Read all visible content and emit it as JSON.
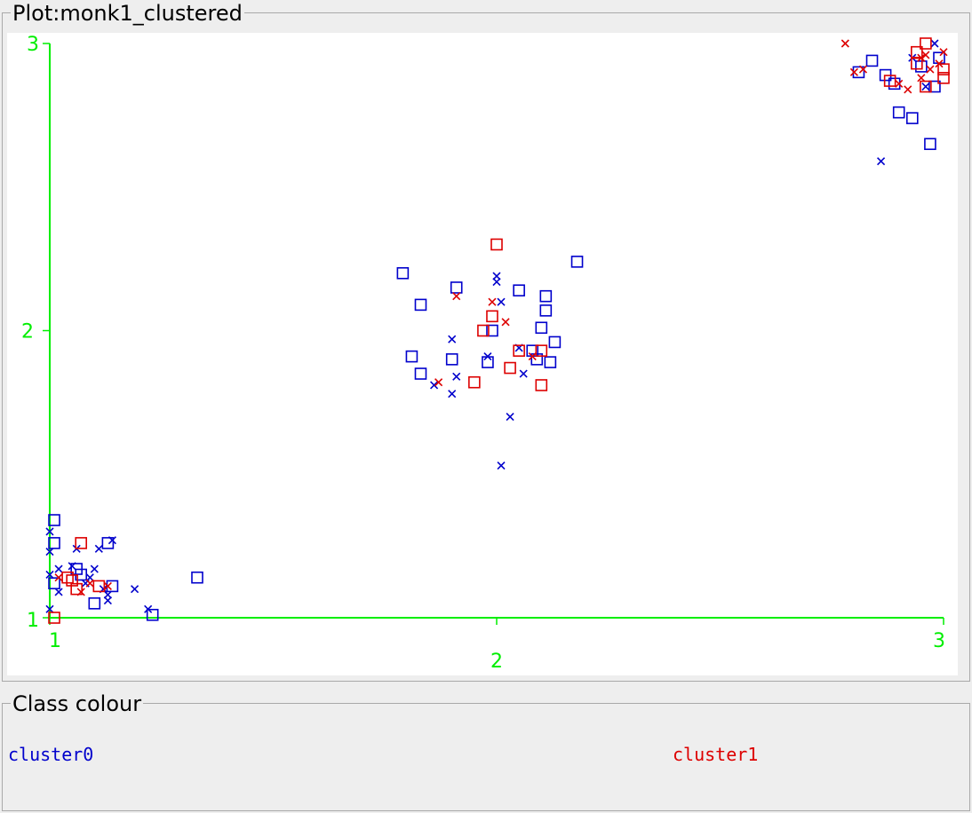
{
  "plot_title": "Plot:monk1_clustered",
  "legend_title": "Class colour",
  "colors": {
    "axis": "#00ee00",
    "cluster0": "#0000cc",
    "cluster1": "#dd0000"
  },
  "classes": [
    {
      "name": "cluster0",
      "color": "#0000cc"
    },
    {
      "name": "cluster1",
      "color": "#dd0000"
    }
  ],
  "chart_data": {
    "type": "scatter",
    "title": "Plot:monk1_clustered",
    "xlabel": "",
    "ylabel": "",
    "xlim": [
      1,
      3
    ],
    "ylim": [
      1,
      3
    ],
    "x_ticks": [
      "1",
      "2",
      "3"
    ],
    "y_ticks": [
      "1",
      "2",
      "3"
    ],
    "grid": false,
    "legend": "bottom",
    "series": [
      {
        "name": "cluster0",
        "color": "#0000cc",
        "points": [
          {
            "x": 1.01,
            "y": 1.34,
            "m": "s"
          },
          {
            "x": 1.0,
            "y": 1.3,
            "m": "x"
          },
          {
            "x": 1.01,
            "y": 1.26,
            "m": "s"
          },
          {
            "x": 1.0,
            "y": 1.23,
            "m": "x"
          },
          {
            "x": 1.02,
            "y": 1.17,
            "m": "x"
          },
          {
            "x": 1.0,
            "y": 1.15,
            "m": "x"
          },
          {
            "x": 1.01,
            "y": 1.12,
            "m": "s"
          },
          {
            "x": 1.02,
            "y": 1.09,
            "m": "x"
          },
          {
            "x": 1.05,
            "y": 1.18,
            "m": "x"
          },
          {
            "x": 1.06,
            "y": 1.17,
            "m": "s"
          },
          {
            "x": 1.06,
            "y": 1.24,
            "m": "x"
          },
          {
            "x": 1.07,
            "y": 1.15,
            "m": "s"
          },
          {
            "x": 1.08,
            "y": 1.12,
            "m": "x"
          },
          {
            "x": 1.09,
            "y": 1.14,
            "m": "x"
          },
          {
            "x": 1.1,
            "y": 1.17,
            "m": "x"
          },
          {
            "x": 1.11,
            "y": 1.24,
            "m": "x"
          },
          {
            "x": 1.13,
            "y": 1.26,
            "m": "s"
          },
          {
            "x": 1.14,
            "y": 1.27,
            "m": "x"
          },
          {
            "x": 1.12,
            "y": 1.1,
            "m": "x"
          },
          {
            "x": 1.14,
            "y": 1.11,
            "m": "s"
          },
          {
            "x": 1.13,
            "y": 1.08,
            "m": "x"
          },
          {
            "x": 1.1,
            "y": 1.05,
            "m": "s"
          },
          {
            "x": 1.13,
            "y": 1.06,
            "m": "x"
          },
          {
            "x": 1.19,
            "y": 1.1,
            "m": "x"
          },
          {
            "x": 1.22,
            "y": 1.03,
            "m": "x"
          },
          {
            "x": 1.23,
            "y": 1.01,
            "m": "s"
          },
          {
            "x": 1.33,
            "y": 1.14,
            "m": "s"
          },
          {
            "x": 1.0,
            "y": 1.03,
            "m": "x"
          },
          {
            "x": 1.79,
            "y": 2.2,
            "m": "s"
          },
          {
            "x": 1.83,
            "y": 2.09,
            "m": "s"
          },
          {
            "x": 1.81,
            "y": 1.91,
            "m": "s"
          },
          {
            "x": 1.83,
            "y": 1.85,
            "m": "s"
          },
          {
            "x": 1.86,
            "y": 1.81,
            "m": "x"
          },
          {
            "x": 1.9,
            "y": 1.9,
            "m": "s"
          },
          {
            "x": 1.9,
            "y": 1.97,
            "m": "x"
          },
          {
            "x": 1.91,
            "y": 2.15,
            "m": "s"
          },
          {
            "x": 1.91,
            "y": 1.84,
            "m": "x"
          },
          {
            "x": 1.9,
            "y": 1.78,
            "m": "x"
          },
          {
            "x": 1.98,
            "y": 1.89,
            "m": "s"
          },
          {
            "x": 1.98,
            "y": 1.91,
            "m": "x"
          },
          {
            "x": 1.99,
            "y": 2.0,
            "m": "s"
          },
          {
            "x": 2.0,
            "y": 2.19,
            "m": "x"
          },
          {
            "x": 2.0,
            "y": 2.17,
            "m": "x"
          },
          {
            "x": 2.01,
            "y": 2.1,
            "m": "x"
          },
          {
            "x": 2.05,
            "y": 2.14,
            "m": "s"
          },
          {
            "x": 2.05,
            "y": 1.94,
            "m": "x"
          },
          {
            "x": 2.06,
            "y": 1.85,
            "m": "x"
          },
          {
            "x": 2.08,
            "y": 1.93,
            "m": "s"
          },
          {
            "x": 2.09,
            "y": 1.9,
            "m": "s"
          },
          {
            "x": 2.1,
            "y": 2.01,
            "m": "s"
          },
          {
            "x": 2.11,
            "y": 2.12,
            "m": "s"
          },
          {
            "x": 2.11,
            "y": 2.07,
            "m": "s"
          },
          {
            "x": 2.12,
            "y": 1.89,
            "m": "s"
          },
          {
            "x": 2.13,
            "y": 1.96,
            "m": "s"
          },
          {
            "x": 2.03,
            "y": 1.7,
            "m": "x"
          },
          {
            "x": 2.01,
            "y": 1.53,
            "m": "x"
          },
          {
            "x": 2.18,
            "y": 2.24,
            "m": "s"
          },
          {
            "x": 2.81,
            "y": 2.9,
            "m": "s"
          },
          {
            "x": 2.84,
            "y": 2.94,
            "m": "s"
          },
          {
            "x": 2.87,
            "y": 2.89,
            "m": "s"
          },
          {
            "x": 2.89,
            "y": 2.86,
            "m": "s"
          },
          {
            "x": 2.9,
            "y": 2.76,
            "m": "s"
          },
          {
            "x": 2.93,
            "y": 2.74,
            "m": "s"
          },
          {
            "x": 2.93,
            "y": 2.95,
            "m": "x"
          },
          {
            "x": 2.95,
            "y": 2.92,
            "m": "s"
          },
          {
            "x": 2.96,
            "y": 2.85,
            "m": "x"
          },
          {
            "x": 2.98,
            "y": 3.0,
            "m": "x"
          },
          {
            "x": 2.99,
            "y": 2.95,
            "m": "s"
          },
          {
            "x": 2.98,
            "y": 2.85,
            "m": "s"
          },
          {
            "x": 2.97,
            "y": 2.65,
            "m": "s"
          },
          {
            "x": 2.86,
            "y": 2.59,
            "m": "x"
          }
        ]
      },
      {
        "name": "cluster1",
        "color": "#dd0000",
        "points": [
          {
            "x": 1.07,
            "y": 1.26,
            "m": "s"
          },
          {
            "x": 1.04,
            "y": 1.14,
            "m": "s"
          },
          {
            "x": 1.05,
            "y": 1.13,
            "m": "s"
          },
          {
            "x": 1.06,
            "y": 1.1,
            "m": "s"
          },
          {
            "x": 1.07,
            "y": 1.09,
            "m": "x"
          },
          {
            "x": 1.09,
            "y": 1.12,
            "m": "x"
          },
          {
            "x": 1.11,
            "y": 1.11,
            "m": "s"
          },
          {
            "x": 1.13,
            "y": 1.11,
            "m": "x"
          },
          {
            "x": 1.01,
            "y": 1.0,
            "m": "s"
          },
          {
            "x": 1.02,
            "y": 1.14,
            "m": "x"
          },
          {
            "x": 2.0,
            "y": 2.3,
            "m": "s"
          },
          {
            "x": 1.99,
            "y": 2.1,
            "m": "x"
          },
          {
            "x": 1.99,
            "y": 2.05,
            "m": "s"
          },
          {
            "x": 2.02,
            "y": 2.03,
            "m": "x"
          },
          {
            "x": 1.97,
            "y": 2.0,
            "m": "s"
          },
          {
            "x": 1.91,
            "y": 2.12,
            "m": "x"
          },
          {
            "x": 1.95,
            "y": 1.82,
            "m": "s"
          },
          {
            "x": 1.87,
            "y": 1.82,
            "m": "x"
          },
          {
            "x": 2.03,
            "y": 1.87,
            "m": "s"
          },
          {
            "x": 2.05,
            "y": 1.93,
            "m": "s"
          },
          {
            "x": 2.08,
            "y": 1.91,
            "m": "x"
          },
          {
            "x": 2.1,
            "y": 1.93,
            "m": "s"
          },
          {
            "x": 2.1,
            "y": 1.81,
            "m": "s"
          },
          {
            "x": 2.78,
            "y": 3.0,
            "m": "x"
          },
          {
            "x": 2.8,
            "y": 2.9,
            "m": "x"
          },
          {
            "x": 2.82,
            "y": 2.91,
            "m": "x"
          },
          {
            "x": 2.88,
            "y": 2.87,
            "m": "s"
          },
          {
            "x": 2.9,
            "y": 2.86,
            "m": "x"
          },
          {
            "x": 2.92,
            "y": 2.84,
            "m": "x"
          },
          {
            "x": 2.94,
            "y": 2.93,
            "m": "s"
          },
          {
            "x": 2.95,
            "y": 2.95,
            "m": "x"
          },
          {
            "x": 2.96,
            "y": 3.0,
            "m": "s"
          },
          {
            "x": 2.96,
            "y": 2.96,
            "m": "x"
          },
          {
            "x": 2.95,
            "y": 2.88,
            "m": "x"
          },
          {
            "x": 2.96,
            "y": 2.85,
            "m": "s"
          },
          {
            "x": 2.97,
            "y": 2.91,
            "m": "x"
          },
          {
            "x": 3.0,
            "y": 2.91,
            "m": "s"
          },
          {
            "x": 3.0,
            "y": 2.88,
            "m": "s"
          },
          {
            "x": 3.0,
            "y": 2.97,
            "m": "x"
          },
          {
            "x": 2.99,
            "y": 2.93,
            "m": "x"
          },
          {
            "x": 2.94,
            "y": 2.97,
            "m": "s"
          }
        ]
      }
    ]
  }
}
